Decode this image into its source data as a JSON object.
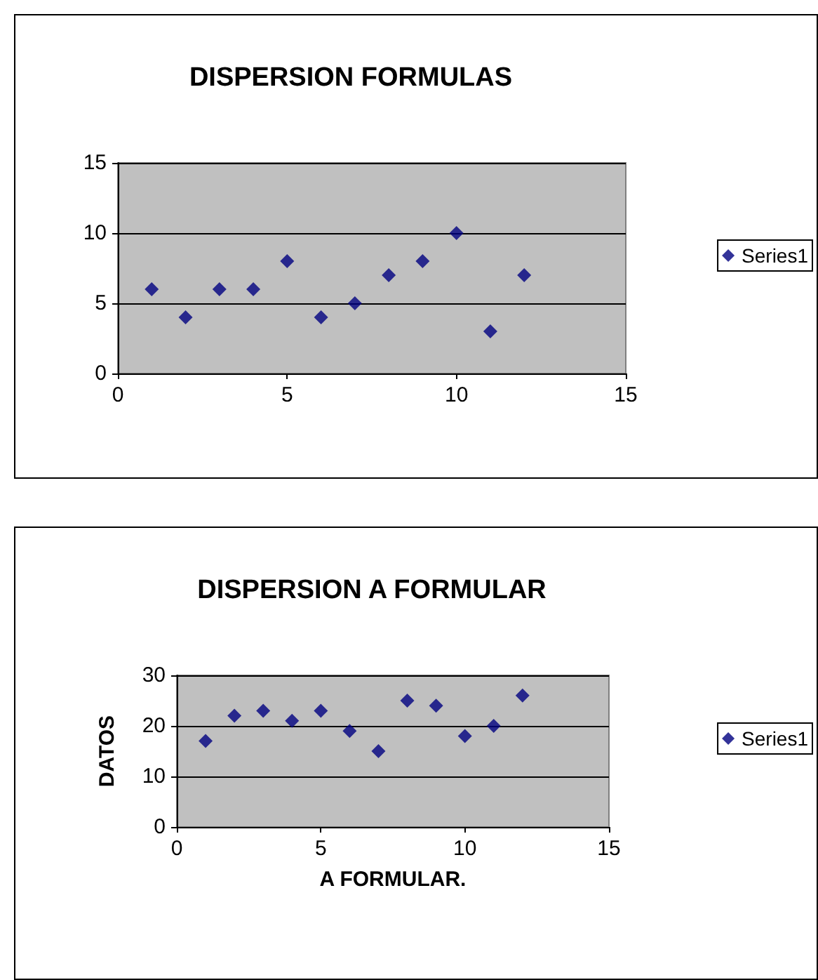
{
  "chart_data": [
    {
      "type": "scatter",
      "title": "DISPERSION FORMULAS",
      "x": [
        1,
        2,
        3,
        4,
        5,
        6,
        7,
        8,
        9,
        10,
        11,
        12
      ],
      "series": [
        {
          "name": "Series1",
          "color": "#000080",
          "values": [
            6,
            4,
            6,
            6,
            8,
            4,
            5,
            7,
            8,
            10,
            3,
            7
          ]
        }
      ],
      "xlim": [
        0,
        15
      ],
      "xticks": [
        0,
        5,
        10,
        15
      ],
      "ylim": [
        0,
        15
      ],
      "yticks": [
        0,
        5,
        10,
        15
      ],
      "grid": "y",
      "legend": "right",
      "marker": "diamond"
    },
    {
      "type": "scatter",
      "title": "DISPERSION A FORMULAR",
      "xlabel": "A FORMULAR.",
      "ylabel": "DATOS",
      "x": [
        1,
        2,
        3,
        4,
        5,
        6,
        7,
        8,
        9,
        10,
        11,
        12
      ],
      "series": [
        {
          "name": "Series1",
          "color": "#000080",
          "values": [
            17,
            22,
            23,
            21,
            23,
            19,
            15,
            25,
            24,
            18,
            20,
            26
          ]
        }
      ],
      "xlim": [
        0,
        15
      ],
      "xticks": [
        0,
        5,
        10,
        15
      ],
      "ylim": [
        0,
        30
      ],
      "yticks": [
        0,
        10,
        20,
        30
      ],
      "grid": "y",
      "legend": "right",
      "marker": "diamond"
    }
  ]
}
